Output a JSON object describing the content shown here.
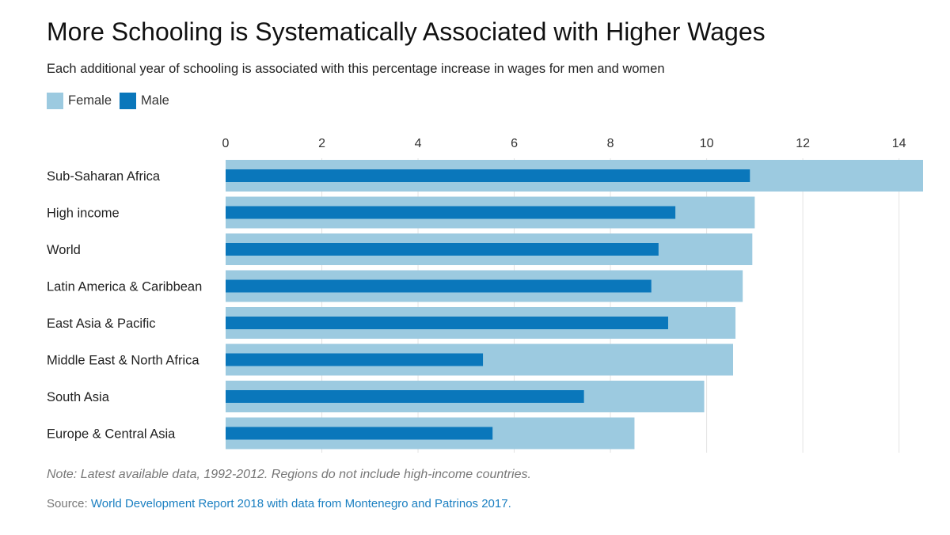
{
  "title": "More Schooling is Systematically Associated with Higher Wages",
  "subtitle": "Each additional year of schooling is associated with this percentage increase in wages for men and women",
  "legend": [
    {
      "label": "Female",
      "color": "#9ccae0"
    },
    {
      "label": "Male",
      "color": "#0a77bb"
    }
  ],
  "chart_data": {
    "type": "bar",
    "orientation": "horizontal",
    "title": "More Schooling is Systematically Associated with Higher Wages",
    "xlabel": "",
    "ylabel": "",
    "xlim": [
      0,
      14.5
    ],
    "x_ticks": [
      0,
      2,
      4,
      6,
      8,
      10,
      12,
      14
    ],
    "grid": true,
    "legend_position": "top-left",
    "categories": [
      "Sub-Saharan Africa",
      "High income",
      "World",
      "Latin America & Caribbean",
      "East Asia & Pacific",
      "Middle East & North Africa",
      "South Asia",
      "Europe & Central Asia"
    ],
    "series": [
      {
        "name": "Female",
        "color": "#9ccae0",
        "values": [
          14.5,
          11.0,
          10.95,
          10.75,
          10.6,
          10.55,
          9.95,
          8.5
        ]
      },
      {
        "name": "Male",
        "color": "#0a77bb",
        "values": [
          10.9,
          9.35,
          9.0,
          8.85,
          9.2,
          5.35,
          7.45,
          5.55
        ]
      }
    ]
  },
  "note": "Note: Latest available data, 1992-2012. Regions do not include high-income countries.",
  "source": {
    "prefix": "Source: ",
    "link_text": "World Development Report 2018 with data from Montenegro and Patrinos 2017."
  }
}
